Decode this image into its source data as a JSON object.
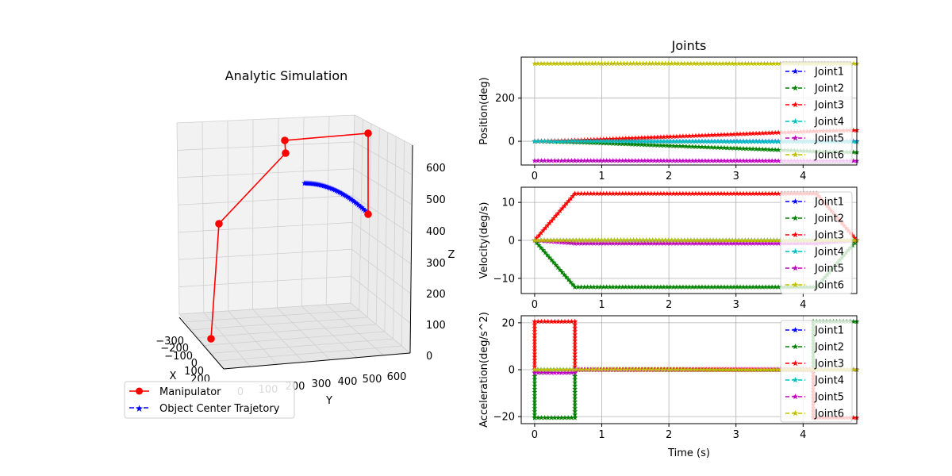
{
  "colors": {
    "Joint1": "#0000ff",
    "Joint2": "#008000",
    "Joint3": "#ff0000",
    "Joint4": "#00bfbf",
    "Joint5": "#bf00bf",
    "Joint6": "#bfbf00",
    "manipulator": "#ff0000",
    "trajectory": "#0000ff",
    "grid": "#b0b0b0"
  },
  "left_plot": {
    "title": "Analytic Simulation",
    "xlabel": "X",
    "ylabel": "Y",
    "zlabel": "Z",
    "x_ticks": [
      "−300",
      "−200",
      "−100",
      "0",
      "100",
      "200"
    ],
    "y_ticks": [
      "0",
      "100",
      "200",
      "300",
      "400",
      "500",
      "600"
    ],
    "z_ticks": [
      "0",
      "100",
      "200",
      "300",
      "400",
      "500",
      "600"
    ],
    "legend": [
      {
        "label": "Manipulator",
        "style": "solid-circle"
      },
      {
        "label": "Object Center Trajetory",
        "style": "dashed-star"
      }
    ]
  },
  "chart_data": [
    {
      "type": "line",
      "title": "Joints",
      "xlabel": "",
      "ylabel": "Position(deg)",
      "xlim": [
        -0.2,
        4.8
      ],
      "ylim": [
        -110,
        390
      ],
      "x_ticks": [
        0,
        1,
        2,
        3,
        4
      ],
      "y_ticks": [
        0,
        200
      ],
      "grid": true,
      "legend_position": "right",
      "series": [
        {
          "name": "Joint1",
          "x": [
            0,
            0.6,
            4.2,
            4.8
          ],
          "y": [
            0,
            0,
            0,
            0
          ]
        },
        {
          "name": "Joint2",
          "x": [
            0,
            0.6,
            4.2,
            4.8
          ],
          "y": [
            0,
            -4,
            -47,
            -51
          ]
        },
        {
          "name": "Joint3",
          "x": [
            0,
            0.6,
            4.2,
            4.8
          ],
          "y": [
            0,
            4,
            47,
            51
          ]
        },
        {
          "name": "Joint4",
          "x": [
            0,
            0.6,
            4.2,
            4.8
          ],
          "y": [
            0,
            0,
            -2,
            -2
          ]
        },
        {
          "name": "Joint5",
          "x": [
            0,
            0.6,
            4.2,
            4.8
          ],
          "y": [
            -90,
            -90,
            -91,
            -91
          ]
        },
        {
          "name": "Joint6",
          "x": [
            0,
            4.8
          ],
          "y": [
            360,
            360
          ]
        }
      ]
    },
    {
      "type": "line",
      "xlabel": "",
      "ylabel": "Velocity(deg/s)",
      "xlim": [
        -0.2,
        4.8
      ],
      "ylim": [
        -14,
        14
      ],
      "x_ticks": [
        0,
        1,
        2,
        3,
        4
      ],
      "y_ticks": [
        -10,
        0,
        10
      ],
      "grid": true,
      "legend_position": "right",
      "series": [
        {
          "name": "Joint1",
          "x": [
            0,
            4.8
          ],
          "y": [
            0,
            0
          ]
        },
        {
          "name": "Joint2",
          "x": [
            0,
            0.6,
            4.2,
            4.8
          ],
          "y": [
            0,
            -12.3,
            -12.3,
            0
          ]
        },
        {
          "name": "Joint3",
          "x": [
            0,
            0.6,
            4.2,
            4.8
          ],
          "y": [
            0,
            12.3,
            12.3,
            0
          ]
        },
        {
          "name": "Joint4",
          "x": [
            0,
            4.8
          ],
          "y": [
            0,
            0
          ]
        },
        {
          "name": "Joint5",
          "x": [
            0,
            0.6,
            4.2,
            4.8
          ],
          "y": [
            0,
            -0.8,
            -0.8,
            0
          ]
        },
        {
          "name": "Joint6",
          "x": [
            0,
            4.8
          ],
          "y": [
            0,
            0
          ]
        }
      ]
    },
    {
      "type": "line",
      "xlabel": "Time (s)",
      "ylabel": "Acceleration(deg/s^2)",
      "xlim": [
        -0.2,
        4.8
      ],
      "ylim": [
        -23,
        23
      ],
      "x_ticks": [
        0,
        1,
        2,
        3,
        4
      ],
      "y_ticks": [
        -20,
        0,
        20
      ],
      "grid": true,
      "legend_position": "right",
      "series": [
        {
          "name": "Joint1",
          "x": [
            0,
            4.8
          ],
          "y": [
            0,
            0
          ]
        },
        {
          "name": "Joint2",
          "x": [
            0,
            0,
            0.6,
            0.6,
            4.15,
            4.15,
            4.8
          ],
          "y": [
            0,
            -20.5,
            -20.5,
            0,
            0,
            20.5,
            20.5
          ]
        },
        {
          "name": "Joint3",
          "x": [
            0,
            0,
            0.6,
            0.6,
            4.15,
            4.15,
            4.8
          ],
          "y": [
            0,
            20.5,
            20.5,
            0,
            0,
            -20.5,
            -20.5
          ]
        },
        {
          "name": "Joint4",
          "x": [
            0,
            4.8
          ],
          "y": [
            0,
            0
          ]
        },
        {
          "name": "Joint5",
          "x": [
            0,
            0,
            0.6,
            0.6,
            4.8
          ],
          "y": [
            0,
            -1.3,
            -1.3,
            0,
            0
          ]
        },
        {
          "name": "Joint6",
          "x": [
            0,
            4.8
          ],
          "y": [
            0,
            0
          ]
        }
      ]
    }
  ]
}
